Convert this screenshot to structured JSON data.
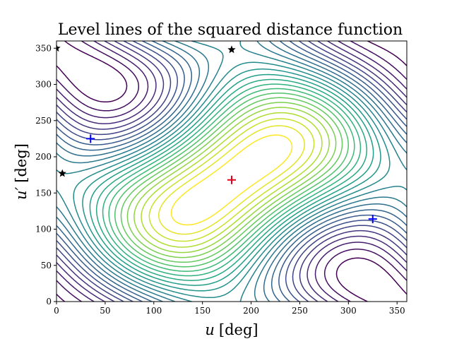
{
  "chart_data": {
    "type": "contour",
    "title": "Level lines of the squared distance function",
    "xlabel_var": "u",
    "xlabel_unit": "[deg]",
    "ylabel_var": "u′",
    "ylabel_unit": "[deg]",
    "xlim": [
      0,
      360
    ],
    "ylim": [
      0,
      360
    ],
    "xticks": [
      0,
      50,
      100,
      150,
      200,
      250,
      300,
      350
    ],
    "yticks": [
      0,
      50,
      100,
      150,
      200,
      250,
      300,
      350
    ],
    "colormap": "viridis",
    "levels": 26,
    "contour_center": [
      180,
      168
    ],
    "contour_correlation": 0.55,
    "markers": [
      {
        "kind": "maximum",
        "symbol": "+",
        "color": "#e4001c",
        "x": 180,
        "y": 168
      },
      {
        "kind": "local-minimum",
        "symbol": "+",
        "color": "#0000ff",
        "x": 35,
        "y": 225
      },
      {
        "kind": "local-minimum",
        "symbol": "+",
        "color": "#0000ff",
        "x": 325,
        "y": 114
      },
      {
        "kind": "critical-point",
        "symbol": "star",
        "color": "#000000",
        "x": 0,
        "y": 350
      },
      {
        "kind": "critical-point",
        "symbol": "star",
        "color": "#000000",
        "x": 180,
        "y": 348
      },
      {
        "kind": "critical-point",
        "symbol": "star",
        "color": "#000000",
        "x": 6,
        "y": 177
      }
    ]
  }
}
